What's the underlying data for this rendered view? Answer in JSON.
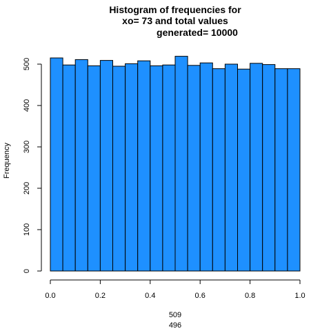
{
  "chart_data": {
    "type": "bar",
    "title_lines": [
      "Histogram of frequencies for",
      "xo= 73  and total values",
      "generated= 10000"
    ],
    "xlabel_lines": [
      "509",
      "496"
    ],
    "ylabel": "Frequency",
    "bin_width": 0.05,
    "bins": [
      {
        "start": 0.0,
        "end": 0.05,
        "count": 515
      },
      {
        "start": 0.05,
        "end": 0.1,
        "count": 498
      },
      {
        "start": 0.1,
        "end": 0.15,
        "count": 511
      },
      {
        "start": 0.15,
        "end": 0.2,
        "count": 496
      },
      {
        "start": 0.2,
        "end": 0.25,
        "count": 509
      },
      {
        "start": 0.25,
        "end": 0.3,
        "count": 495
      },
      {
        "start": 0.3,
        "end": 0.35,
        "count": 501
      },
      {
        "start": 0.35,
        "end": 0.4,
        "count": 508
      },
      {
        "start": 0.4,
        "end": 0.45,
        "count": 496
      },
      {
        "start": 0.45,
        "end": 0.5,
        "count": 498
      },
      {
        "start": 0.5,
        "end": 0.55,
        "count": 519
      },
      {
        "start": 0.55,
        "end": 0.6,
        "count": 497
      },
      {
        "start": 0.6,
        "end": 0.65,
        "count": 503
      },
      {
        "start": 0.65,
        "end": 0.7,
        "count": 489
      },
      {
        "start": 0.7,
        "end": 0.75,
        "count": 500
      },
      {
        "start": 0.75,
        "end": 0.8,
        "count": 488
      },
      {
        "start": 0.8,
        "end": 0.85,
        "count": 502
      },
      {
        "start": 0.85,
        "end": 0.9,
        "count": 499
      },
      {
        "start": 0.9,
        "end": 0.95,
        "count": 489
      },
      {
        "start": 0.95,
        "end": 1.0,
        "count": 489
      }
    ],
    "xlim": [
      0,
      1
    ],
    "ylim": [
      0,
      520
    ],
    "x_ticks": [
      "0.0",
      "0.2",
      "0.4",
      "0.6",
      "0.8",
      "1.0"
    ],
    "y_ticks": [
      "0",
      "100",
      "200",
      "300",
      "400",
      "500"
    ],
    "grid": false,
    "legend": "none",
    "bar_color": "#1E90FF",
    "bar_edge_color": "#000000"
  }
}
